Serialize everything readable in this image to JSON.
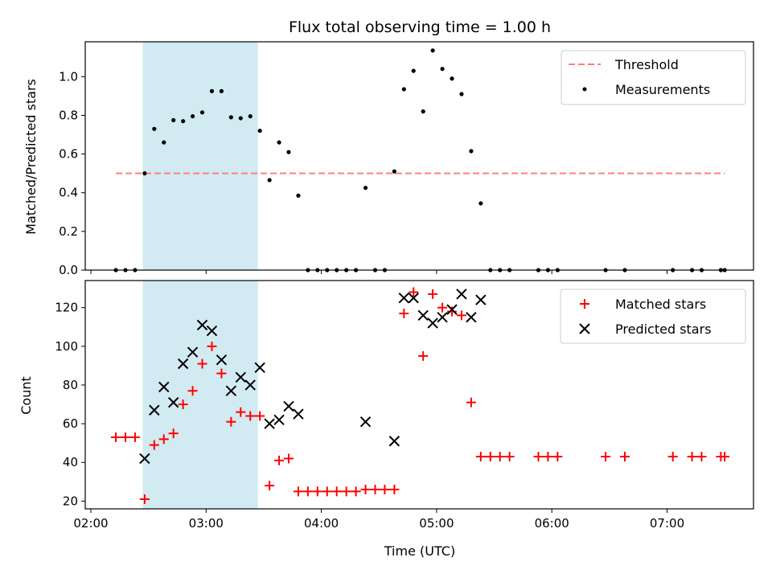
{
  "chart_data": {
    "title": "Flux total observing time = 1.00 h",
    "xlabel": "Time (UTC)",
    "x_ticks": [
      "02:00",
      "03:00",
      "04:00",
      "05:00",
      "06:00",
      "07:00"
    ],
    "shaded_span": {
      "start": "02:27",
      "end": "03:27",
      "color": "#add8e6"
    },
    "panels": [
      {
        "type": "scatter",
        "ylabel": "Matched/Predicted stars",
        "ylim": [
          0,
          1.18
        ],
        "y_ticks": [
          "0.0",
          "0.2",
          "0.4",
          "0.6",
          "0.8",
          "1.0"
        ],
        "legend_position": "top-right",
        "threshold": {
          "name": "Threshold",
          "value": 0.5,
          "x_start": "02:13",
          "x_end": "07:30",
          "color": "#ff7f7f"
        },
        "series": [
          {
            "name": "Measurements",
            "marker": "dot",
            "color": "#000000",
            "points": [
              [
                "02:13",
                0
              ],
              [
                "02:18",
                0
              ],
              [
                "02:23",
                0
              ],
              [
                "02:28",
                0.5
              ],
              [
                "02:33",
                0.73
              ],
              [
                "02:38",
                0.66
              ],
              [
                "02:43",
                0.775
              ],
              [
                "02:48",
                0.77
              ],
              [
                "02:53",
                0.795
              ],
              [
                "02:58",
                0.815
              ],
              [
                "03:03",
                0.925
              ],
              [
                "03:08",
                0.925
              ],
              [
                "03:13",
                0.79
              ],
              [
                "03:18",
                0.785
              ],
              [
                "03:23",
                0.795
              ],
              [
                "03:28",
                0.72
              ],
              [
                "03:33",
                0.465
              ],
              [
                "03:38",
                0.66
              ],
              [
                "03:43",
                0.61
              ],
              [
                "03:48",
                0.385
              ],
              [
                "03:53",
                0
              ],
              [
                "03:58",
                0
              ],
              [
                "04:03",
                0
              ],
              [
                "04:08",
                0
              ],
              [
                "04:13",
                0
              ],
              [
                "04:18",
                0
              ],
              [
                "04:23",
                0.425
              ],
              [
                "04:28",
                0
              ],
              [
                "04:33",
                0
              ],
              [
                "04:38",
                0.51
              ],
              [
                "04:43",
                0.935
              ],
              [
                "04:48",
                1.03
              ],
              [
                "04:53",
                0.82
              ],
              [
                "04:58",
                1.135
              ],
              [
                "05:03",
                1.04
              ],
              [
                "05:08",
                0.99
              ],
              [
                "05:13",
                0.91
              ],
              [
                "05:18",
                0.615
              ],
              [
                "05:23",
                0.345
              ],
              [
                "05:28",
                0
              ],
              [
                "05:33",
                0
              ],
              [
                "05:38",
                0
              ],
              [
                "05:53",
                0
              ],
              [
                "05:58",
                0
              ],
              [
                "06:03",
                0
              ],
              [
                "06:28",
                0
              ],
              [
                "06:38",
                0
              ],
              [
                "07:03",
                0
              ],
              [
                "07:13",
                0
              ],
              [
                "07:18",
                0
              ],
              [
                "07:28",
                0
              ],
              [
                "07:30",
                0
              ]
            ]
          }
        ]
      },
      {
        "type": "scatter",
        "ylabel": "Count",
        "ylim": [
          16,
          134
        ],
        "y_ticks": [
          "20",
          "40",
          "60",
          "80",
          "100",
          "120"
        ],
        "legend_position": "top-right",
        "series": [
          {
            "name": "Matched stars",
            "marker": "plus",
            "color": "#ff0000",
            "points": [
              [
                "02:13",
                53
              ],
              [
                "02:18",
                53
              ],
              [
                "02:23",
                53
              ],
              [
                "02:28",
                21
              ],
              [
                "02:33",
                49
              ],
              [
                "02:38",
                52
              ],
              [
                "02:43",
                55
              ],
              [
                "02:48",
                70
              ],
              [
                "02:53",
                77
              ],
              [
                "02:58",
                91
              ],
              [
                "03:03",
                100
              ],
              [
                "03:08",
                86
              ],
              [
                "03:13",
                61
              ],
              [
                "03:18",
                66
              ],
              [
                "03:23",
                64
              ],
              [
                "03:28",
                64
              ],
              [
                "03:33",
                28
              ],
              [
                "03:38",
                41
              ],
              [
                "03:43",
                42
              ],
              [
                "03:48",
                25
              ],
              [
                "03:53",
                25
              ],
              [
                "03:58",
                25
              ],
              [
                "04:03",
                25
              ],
              [
                "04:08",
                25
              ],
              [
                "04:13",
                25
              ],
              [
                "04:18",
                25
              ],
              [
                "04:23",
                26
              ],
              [
                "04:28",
                26
              ],
              [
                "04:33",
                26
              ],
              [
                "04:38",
                26
              ],
              [
                "04:43",
                117
              ],
              [
                "04:48",
                128
              ],
              [
                "04:53",
                95
              ],
              [
                "04:58",
                127
              ],
              [
                "05:03",
                120
              ],
              [
                "05:08",
                118
              ],
              [
                "05:13",
                116
              ],
              [
                "05:18",
                71
              ],
              [
                "05:23",
                43
              ],
              [
                "05:28",
                43
              ],
              [
                "05:33",
                43
              ],
              [
                "05:38",
                43
              ],
              [
                "05:53",
                43
              ],
              [
                "05:58",
                43
              ],
              [
                "06:03",
                43
              ],
              [
                "06:28",
                43
              ],
              [
                "06:38",
                43
              ],
              [
                "07:03",
                43
              ],
              [
                "07:13",
                43
              ],
              [
                "07:18",
                43
              ],
              [
                "07:28",
                43
              ],
              [
                "07:30",
                43
              ]
            ]
          },
          {
            "name": "Predicted stars",
            "marker": "cross",
            "color": "#000000",
            "points": [
              [
                "02:28",
                42
              ],
              [
                "02:33",
                67
              ],
              [
                "02:38",
                79
              ],
              [
                "02:43",
                71
              ],
              [
                "02:48",
                91
              ],
              [
                "02:53",
                97
              ],
              [
                "02:58",
                111
              ],
              [
                "03:03",
                108
              ],
              [
                "03:08",
                93
              ],
              [
                "03:13",
                77
              ],
              [
                "03:18",
                84
              ],
              [
                "03:23",
                80
              ],
              [
                "03:28",
                89
              ],
              [
                "03:33",
                60
              ],
              [
                "03:38",
                62
              ],
              [
                "03:43",
                69
              ],
              [
                "03:48",
                65
              ],
              [
                "04:23",
                61
              ],
              [
                "04:38",
                51
              ],
              [
                "04:43",
                125
              ],
              [
                "04:48",
                125
              ],
              [
                "04:53",
                116
              ],
              [
                "04:58",
                112
              ],
              [
                "05:03",
                115
              ],
              [
                "05:08",
                119
              ],
              [
                "05:13",
                127
              ],
              [
                "05:18",
                115
              ],
              [
                "05:23",
                124
              ]
            ]
          }
        ]
      }
    ]
  }
}
